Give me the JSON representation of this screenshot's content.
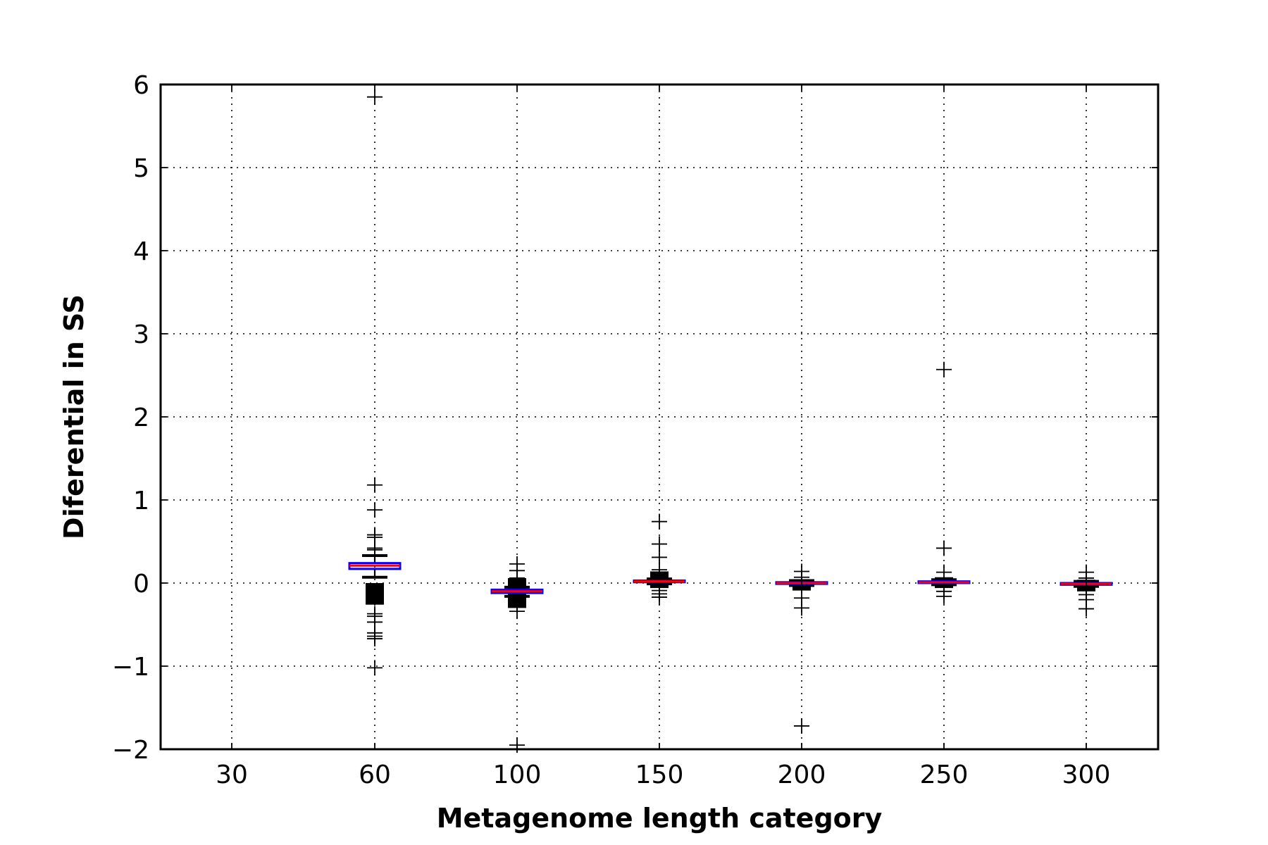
{
  "chart_data": {
    "type": "box",
    "xlabel": "Metagenome length category",
    "ylabel": "Diferential in SS",
    "ylim": [
      -2,
      6
    ],
    "yticks": [
      -2,
      -1,
      0,
      1,
      2,
      3,
      4,
      5,
      6
    ],
    "ytick_labels": [
      "−2",
      "−1",
      "0",
      "1",
      "2",
      "3",
      "4",
      "5",
      "6"
    ],
    "categories": [
      "30",
      "60",
      "100",
      "150",
      "200",
      "250",
      "300"
    ],
    "grid": true,
    "colors": {
      "box": "#0000ff",
      "median": "#ff0000",
      "whisker": "#000000",
      "flier": "#000000"
    },
    "boxes": [
      {
        "category": "30",
        "empty": true
      },
      {
        "category": "60",
        "q1": 0.17,
        "median": 0.21,
        "q3": 0.24,
        "whisker_low": 0.07,
        "whisker_high": 0.33,
        "fliers": [
          5.85,
          1.18,
          0.88,
          0.58,
          0.55,
          0.42,
          0.4,
          -0.37,
          -0.4,
          -0.47,
          -0.6,
          -0.64,
          -0.67,
          -1.02
        ],
        "dense_range": [
          -0.26,
          0.0
        ]
      },
      {
        "category": "100",
        "q1": -0.12,
        "median": -0.1,
        "q3": -0.08,
        "whisker_low": -0.16,
        "whisker_high": -0.05,
        "fliers": [
          0.23,
          0.15,
          0.06,
          -0.26,
          -0.34,
          -1.95
        ],
        "dense_range": [
          -0.3,
          0.06
        ]
      },
      {
        "category": "150",
        "q1": 0.01,
        "median": 0.02,
        "q3": 0.03,
        "whisker_low": -0.01,
        "whisker_high": 0.05,
        "fliers": [
          0.74,
          0.47,
          0.31,
          0.16,
          -0.09,
          -0.13,
          -0.17
        ],
        "dense_range": [
          -0.06,
          0.14
        ]
      },
      {
        "category": "200",
        "q1": -0.01,
        "median": 0.0,
        "q3": 0.01,
        "whisker_low": -0.03,
        "whisker_high": 0.03,
        "fliers": [
          0.14,
          0.07,
          -0.18,
          -0.3,
          -1.72
        ],
        "dense_range": [
          -0.09,
          0.04
        ]
      },
      {
        "category": "250",
        "q1": 0.0,
        "median": 0.01,
        "q3": 0.02,
        "whisker_low": -0.02,
        "whisker_high": 0.04,
        "fliers": [
          2.57,
          0.42,
          0.13,
          -0.1,
          -0.16
        ],
        "dense_range": [
          -0.06,
          0.07
        ]
      },
      {
        "category": "300",
        "q1": -0.02,
        "median": -0.01,
        "q3": 0.0,
        "whisker_low": -0.04,
        "whisker_high": 0.02,
        "fliers": [
          0.13,
          0.06,
          -0.14,
          -0.2,
          -0.31
        ],
        "dense_range": [
          -0.1,
          0.04
        ]
      }
    ]
  }
}
